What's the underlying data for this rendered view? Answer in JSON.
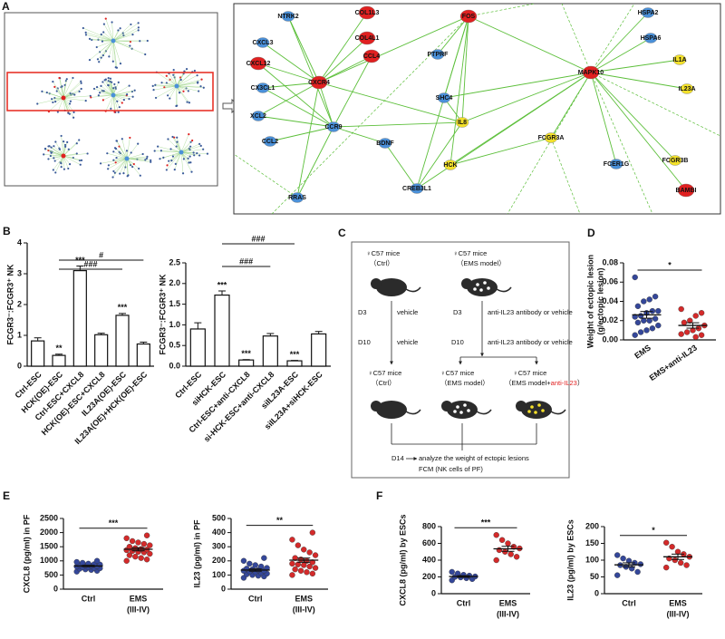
{
  "panel_labels": [
    "A",
    "B",
    "C",
    "D",
    "E",
    "F"
  ],
  "network": {
    "nodes": [
      {
        "label": "NTRK2",
        "color": "#4a90d9"
      },
      {
        "label": "COL1L3",
        "color": "#e02020"
      },
      {
        "label": "FOS",
        "color": "#e02020"
      },
      {
        "label": "HSPA2",
        "color": "#4a90d9"
      },
      {
        "label": "HSPA6",
        "color": "#4a90d9"
      },
      {
        "label": "CXCL3",
        "color": "#4a90d9"
      },
      {
        "label": "COL4L1",
        "color": "#e02020"
      },
      {
        "label": "CCL4",
        "color": "#e02020"
      },
      {
        "label": "PTPRF",
        "color": "#4a90d9"
      },
      {
        "label": "IL1A",
        "color": "#f2e02a"
      },
      {
        "label": "CXCL12",
        "color": "#e02020"
      },
      {
        "label": "MAPK10",
        "color": "#e02020"
      },
      {
        "label": "CXCR4",
        "color": "#e02020"
      },
      {
        "label": "CX3CL1",
        "color": "#4a90d9"
      },
      {
        "label": "IL23A",
        "color": "#f2e02a"
      },
      {
        "label": "SHC4",
        "color": "#4a90d9"
      },
      {
        "label": "XCL2",
        "color": "#4a90d9"
      },
      {
        "label": "CCR9",
        "color": "#4a90d9"
      },
      {
        "label": "IL8",
        "color": "#f2e02a"
      },
      {
        "label": "CCL2",
        "color": "#4a90d9"
      },
      {
        "label": "BDNF",
        "color": "#4a90d9"
      },
      {
        "label": "FCGR3A",
        "color": "#f2e02a"
      },
      {
        "label": "FCGR3B",
        "color": "#f2e02a"
      },
      {
        "label": "HCK",
        "color": "#f2e02a"
      },
      {
        "label": "FCER1G",
        "color": "#4a90d9"
      },
      {
        "label": "CREB3L1",
        "color": "#4a90d9"
      },
      {
        "label": "RRAS",
        "color": "#4a90d9"
      },
      {
        "label": "BAMBI",
        "color": "#e02020"
      }
    ]
  },
  "flow": {
    "top_left": [
      "♀C57 mice",
      "（Ctrl）"
    ],
    "top_right": [
      "♀C57 mice",
      "（EMS model）"
    ],
    "left_steps": [
      [
        "D3",
        "vehicle"
      ],
      [
        "D10",
        "vehicle"
      ]
    ],
    "right_steps": [
      [
        "D3",
        "anti-IL23 antibody or vehicle"
      ],
      [
        "D10",
        "anti-IL23 antibody or vehicle"
      ]
    ],
    "bottom_left": [
      "♀C57 mice",
      "（Ctrl）"
    ],
    "bottom_mid": [
      "♀C57 mice",
      "（EMS model）"
    ],
    "bottom_right": [
      "♀C57 mice",
      "（EMS model+",
      "anti-IL23",
      "）"
    ],
    "final_day": "D14",
    "final_lines": [
      "analyze the weight of ectopic lesions",
      "FCM (NK cells of PF)"
    ]
  },
  "chart_data": [
    {
      "type": "bar",
      "ylabel": "FCGR3⁻:FCGR3⁺ NK",
      "color": "#ffffff",
      "categories": [
        "Ctrl-ESC",
        "HCK(OE)-ESC",
        "Ctrl-ESC+CXCL8",
        "HCK(OE)-ESC+CXCL8",
        "IL23A(OE)-ESC",
        "IL23A(OE)+HCK(OE)-ESC"
      ],
      "values": [
        0.82,
        0.35,
        3.1,
        1.02,
        1.65,
        0.72
      ],
      "errors": [
        0.1,
        0.04,
        0.15,
        0.05,
        0.06,
        0.06
      ],
      "star_labels": [
        null,
        "**",
        "***",
        null,
        "***",
        null
      ],
      "bracket_labels": [
        "###",
        "#"
      ],
      "ylim": [
        0,
        4
      ],
      "yticks": [
        0,
        1,
        2,
        3,
        4
      ]
    },
    {
      "type": "bar",
      "ylabel": "FCGR3⁻:FCGR3⁺ NK",
      "color": "#ffffff",
      "categories": [
        "Ctrl-ESC",
        "siHCK-ESC",
        "Ctrl-ESC+anti-CXCL8",
        "si-HCK-ESC+anti-CXCL8",
        "siIL23A-ESC",
        "siIL23A+siHCK-ESC"
      ],
      "values": [
        0.9,
        1.72,
        0.15,
        0.73,
        0.13,
        0.78
      ],
      "errors": [
        0.15,
        0.1,
        0.01,
        0.06,
        0.01,
        0.06
      ],
      "star_labels": [
        null,
        "***",
        "***",
        null,
        "***",
        null
      ],
      "bracket_labels": [
        "###",
        "###"
      ],
      "ylim": [
        0,
        2.5
      ],
      "yticks": [
        {
          "value": 0,
          "label": "0.0"
        },
        0.5,
        {
          "value": 1,
          "label": "1.0"
        },
        1.5,
        {
          "value": 2,
          "label": "2.0"
        },
        2.5
      ]
    },
    {
      "type": "dot",
      "ylabel": [
        "Weight of ectopic lesion",
        "(g/ectopic lesion)"
      ],
      "rotate_categories": true,
      "categories": [
        "EMS",
        "EMS+anti-IL23"
      ],
      "category_notes": [
        null,
        null
      ],
      "significance": "*",
      "groups": [
        {
          "color": "#34479a",
          "values": [
            0.065,
            0.045,
            0.042,
            0.04,
            0.035,
            0.03,
            0.03,
            0.028,
            0.025,
            0.024,
            0.022,
            0.02,
            0.02,
            0.018,
            0.015,
            0.012,
            0.01,
            0.008,
            0.005
          ],
          "mean": 0.026,
          "error": 0.0035
        },
        {
          "color": "#d42a2a",
          "values": [
            0.032,
            0.028,
            0.025,
            0.02,
            0.018,
            0.015,
            0.012,
            0.01,
            0.008,
            0.006,
            0.005,
            0.003
          ],
          "mean": 0.015,
          "error": 0.0028
        }
      ],
      "ylim": [
        0,
        0.08
      ],
      "yticks": [
        {
          "value": 0,
          "label": "0.00"
        },
        {
          "value": 0.02,
          "label": "0.02"
        },
        {
          "value": 0.04,
          "label": "0.04"
        },
        {
          "value": 0.06,
          "label": "0.06"
        },
        {
          "value": 0.08,
          "label": "0.08"
        }
      ]
    },
    {
      "type": "dot",
      "ylabel": "CXCL8 (pg/ml) in PF",
      "rotate_categories": false,
      "categories": [
        "Ctrl",
        "EMS"
      ],
      "category_notes": [
        null,
        "(III-IV)"
      ],
      "significance": "***",
      "groups": [
        {
          "color": "#34479a",
          "values": [
            620,
            650,
            680,
            700,
            720,
            740,
            750,
            770,
            780,
            800,
            810,
            820,
            840,
            850,
            870,
            880,
            900,
            930,
            960,
            1000
          ],
          "mean": 820,
          "error": 25
        },
        {
          "color": "#d42a2a",
          "values": [
            1000,
            1050,
            1100,
            1150,
            1200,
            1250,
            1300,
            1320,
            1350,
            1380,
            1400,
            1420,
            1450,
            1500,
            1550,
            1600,
            1650,
            1700,
            1800,
            1900
          ],
          "mean": 1410,
          "error": 55
        }
      ],
      "ylim": [
        0,
        2500
      ],
      "yticks": [
        0,
        500,
        1000,
        1500,
        2000,
        2500
      ]
    },
    {
      "type": "dot",
      "ylabel": "IL23 (pg/ml) in PF",
      "rotate_categories": false,
      "categories": [
        "Ctrl",
        "EMS"
      ],
      "category_notes": [
        null,
        "(III-IV)"
      ],
      "significance": "**",
      "groups": [
        {
          "color": "#34479a",
          "values": [
            80,
            90,
            95,
            100,
            105,
            110,
            115,
            120,
            125,
            130,
            130,
            135,
            140,
            145,
            150,
            160,
            170,
            180,
            200,
            220
          ],
          "mean": 135,
          "error": 8
        },
        {
          "color": "#d42a2a",
          "values": [
            100,
            110,
            120,
            130,
            140,
            150,
            160,
            170,
            175,
            180,
            190,
            200,
            210,
            220,
            240,
            260,
            280,
            310,
            350,
            400
          ],
          "mean": 205,
          "error": 15
        }
      ],
      "ylim": [
        0,
        500
      ],
      "yticks": [
        0,
        100,
        200,
        300,
        400,
        500
      ]
    },
    {
      "type": "dot",
      "ylabel": "CXCL8 (pg/ml) by ESCs",
      "rotate_categories": false,
      "categories": [
        "Ctrl",
        "EMS"
      ],
      "category_notes": [
        null,
        "(III-IV)"
      ],
      "significance": "***",
      "groups": [
        {
          "color": "#34479a",
          "values": [
            160,
            175,
            185,
            195,
            200,
            205,
            215,
            225,
            240,
            260
          ],
          "mean": 205,
          "error": 10
        },
        {
          "color": "#d42a2a",
          "values": [
            400,
            440,
            470,
            500,
            520,
            540,
            560,
            600,
            640,
            700
          ],
          "mean": 535,
          "error": 30
        }
      ],
      "ylim": [
        0,
        800
      ],
      "yticks": [
        0,
        200,
        400,
        600,
        800
      ]
    },
    {
      "type": "dot",
      "ylabel": "IL23 (pg/ml) by ESCs",
      "rotate_categories": false,
      "categories": [
        "Ctrl",
        "EMS"
      ],
      "category_notes": [
        null,
        "(III-IV)"
      ],
      "significance": "*",
      "groups": [
        {
          "color": "#34479a",
          "values": [
            55,
            65,
            75,
            80,
            85,
            88,
            92,
            98,
            105,
            115
          ],
          "mean": 86,
          "error": 6
        },
        {
          "color": "#d42a2a",
          "values": [
            78,
            85,
            92,
            100,
            105,
            110,
            118,
            125,
            140,
            152
          ],
          "mean": 110,
          "error": 8
        }
      ],
      "ylim": [
        0,
        200
      ],
      "yticks": [
        0,
        50,
        100,
        150,
        200
      ]
    }
  ]
}
